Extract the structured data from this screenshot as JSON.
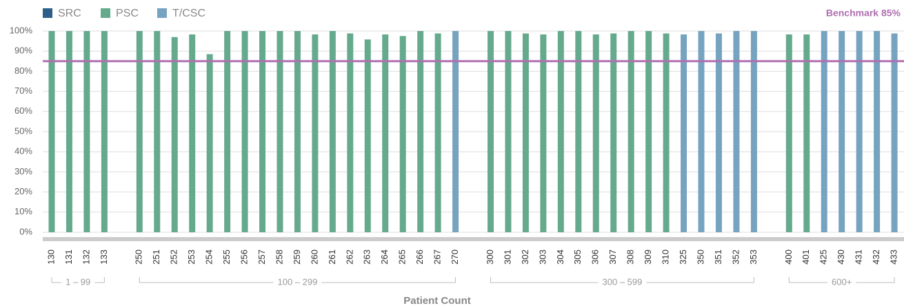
{
  "chart_data": {
    "type": "bar",
    "x_label": "Patient Count",
    "ylim": [
      0,
      100
    ],
    "yticks": [
      {
        "value": 0,
        "label": "0%"
      },
      {
        "value": 10,
        "label": "10%"
      },
      {
        "value": 20,
        "label": "20%"
      },
      {
        "value": 30,
        "label": "30%"
      },
      {
        "value": 40,
        "label": "40%"
      },
      {
        "value": 50,
        "label": "50%"
      },
      {
        "value": 60,
        "label": "60%"
      },
      {
        "value": 70,
        "label": "70%"
      },
      {
        "value": 80,
        "label": "80%"
      },
      {
        "value": 90,
        "label": "90%"
      },
      {
        "value": 100,
        "label": "100%"
      }
    ],
    "grid": true,
    "benchmark": {
      "label": "Benchmark 85%",
      "value": 85,
      "color": "#b06fb0"
    },
    "groups": [
      {
        "label": "1 – 99",
        "categories": [
          "130",
          "131",
          "132",
          "133"
        ]
      },
      {
        "label": "100 – 299",
        "categories": [
          "250",
          "251",
          "252",
          "253",
          "254",
          "255",
          "256",
          "257",
          "258",
          "259",
          "260",
          "261",
          "262",
          "263",
          "264",
          "265",
          "266",
          "267",
          "270"
        ]
      },
      {
        "label": "300 – 599",
        "categories": [
          "300",
          "301",
          "302",
          "303",
          "304",
          "305",
          "306",
          "307",
          "308",
          "309",
          "310",
          "325",
          "350",
          "351",
          "352",
          "353"
        ]
      },
      {
        "label": "600+",
        "categories": [
          "400",
          "401",
          "425",
          "430",
          "431",
          "432",
          "433"
        ]
      }
    ],
    "series": [
      {
        "name": "SRC",
        "color": "#2e5f8a",
        "values": [
          null,
          null,
          null,
          null,
          null,
          null,
          null,
          null,
          null,
          null,
          null,
          null,
          null,
          null,
          null,
          null,
          null,
          null,
          null,
          null,
          null,
          null,
          null,
          null,
          null,
          null,
          null,
          null,
          null,
          null,
          null,
          null,
          null,
          null,
          null,
          null,
          null,
          null,
          null,
          null,
          null,
          null,
          null,
          null,
          null,
          null
        ]
      },
      {
        "name": "PSC",
        "color": "#66aa8e",
        "values": [
          100,
          100,
          100,
          100,
          100,
          100,
          97,
          98.3,
          88.5,
          100,
          100,
          100,
          100,
          100,
          98.3,
          100,
          98.8,
          95.8,
          98.3,
          97.5,
          100,
          98.8,
          null,
          100,
          100,
          98.8,
          98.3,
          100,
          100,
          98.3,
          98.8,
          100,
          100,
          98.8,
          null,
          null,
          null,
          null,
          null,
          98.3,
          98.3,
          null,
          null,
          null,
          null,
          null
        ]
      },
      {
        "name": "T/CSC",
        "color": "#76a3c0",
        "values": [
          null,
          null,
          null,
          null,
          null,
          null,
          null,
          null,
          null,
          null,
          null,
          null,
          null,
          null,
          null,
          null,
          null,
          null,
          null,
          null,
          null,
          null,
          100,
          null,
          null,
          null,
          null,
          null,
          null,
          null,
          null,
          null,
          null,
          null,
          98.3,
          100,
          98.8,
          100,
          100,
          null,
          null,
          100,
          100,
          100,
          100,
          98.8
        ]
      }
    ]
  }
}
